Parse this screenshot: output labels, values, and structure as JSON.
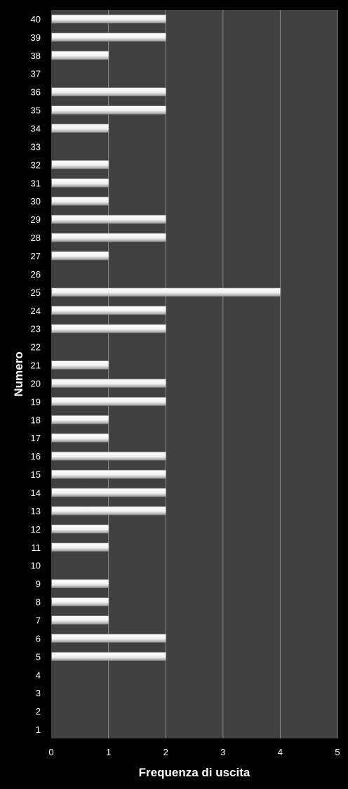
{
  "chart_data": {
    "type": "bar",
    "orientation": "horizontal",
    "title": "",
    "xlabel": "Frequenza di uscita",
    "ylabel": "Numero",
    "xlim": [
      0,
      5
    ],
    "xticks": [
      "0",
      "1",
      "2",
      "3",
      "4",
      "5"
    ],
    "grid": "vertical",
    "legend": "none",
    "categories": [
      "1",
      "2",
      "3",
      "4",
      "5",
      "6",
      "7",
      "8",
      "9",
      "10",
      "11",
      "12",
      "13",
      "14",
      "15",
      "16",
      "17",
      "18",
      "19",
      "20",
      "21",
      "22",
      "23",
      "24",
      "25",
      "26",
      "27",
      "28",
      "29",
      "30",
      "31",
      "32",
      "33",
      "34",
      "35",
      "36",
      "37",
      "38",
      "39",
      "40"
    ],
    "values": [
      0,
      0,
      0,
      0,
      2,
      2,
      1,
      1,
      1,
      0,
      1,
      1,
      2,
      2,
      2,
      2,
      1,
      1,
      2,
      2,
      1,
      0,
      2,
      2,
      4,
      0,
      1,
      2,
      2,
      1,
      1,
      1,
      0,
      1,
      2,
      2,
      0,
      1,
      2,
      2
    ],
    "colors": {
      "background": "#000000",
      "plot_area": "#404040",
      "gridline": "#8c8c8c",
      "bar": "#ffffff",
      "text": "#ffffff"
    }
  }
}
